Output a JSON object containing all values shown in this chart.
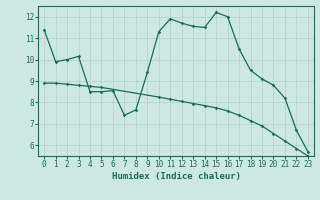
{
  "xlabel": "Humidex (Indice chaleur)",
  "bg_color": "#cde8e4",
  "grid_color": "#aed0cc",
  "line_color": "#1a6b5a",
  "x_ticks": [
    0,
    1,
    2,
    3,
    4,
    5,
    6,
    7,
    8,
    9,
    10,
    11,
    12,
    13,
    14,
    15,
    16,
    17,
    18,
    19,
    20,
    21,
    22,
    23
  ],
  "ylim": [
    5.5,
    12.5
  ],
  "xlim": [
    -0.5,
    23.5
  ],
  "line1_x": [
    0,
    1,
    2,
    3,
    4,
    5,
    6,
    7,
    8,
    9,
    10,
    11,
    12,
    13,
    14,
    15,
    16,
    17,
    18,
    19,
    20,
    21,
    22,
    23
  ],
  "line1_y": [
    11.4,
    9.9,
    10.0,
    10.15,
    8.5,
    8.5,
    8.55,
    7.4,
    7.65,
    9.4,
    11.3,
    11.9,
    11.7,
    11.55,
    11.5,
    12.2,
    12.0,
    10.5,
    9.5,
    9.1,
    8.8,
    8.2,
    6.7,
    5.7
  ],
  "line2_x": [
    0,
    1,
    2,
    3,
    4,
    5,
    10,
    11,
    12,
    13,
    14,
    15,
    16,
    17,
    18,
    19,
    20,
    21,
    22,
    23
  ],
  "line2_y": [
    8.9,
    8.9,
    8.85,
    8.8,
    8.75,
    8.7,
    8.25,
    8.15,
    8.05,
    7.95,
    7.85,
    7.75,
    7.6,
    7.4,
    7.15,
    6.9,
    6.55,
    6.2,
    5.85,
    5.5
  ],
  "yticks": [
    6,
    7,
    8,
    9,
    10,
    11,
    12
  ],
  "tick_fontsize": 5.5,
  "xlabel_fontsize": 6.5
}
